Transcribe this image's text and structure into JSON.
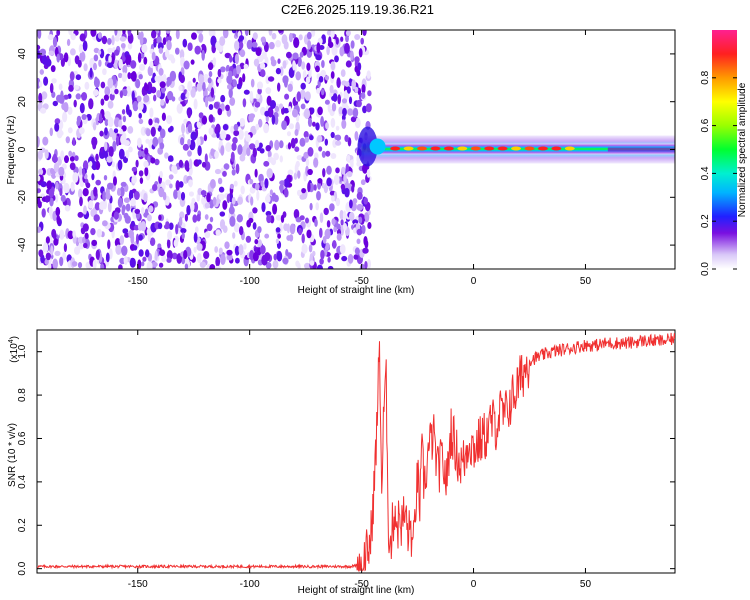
{
  "title": "C2E6.2025.119.19.36.R21",
  "colorbar": {
    "label": "Normalized spectral amplitude",
    "ticks": [
      "0.0",
      "0.2",
      "0.4",
      "0.6",
      "0.8"
    ]
  },
  "chart_data": [
    {
      "type": "heatmap",
      "title": "C2E6.2025.119.19.36.R21",
      "xlabel": "Height of straight line (km)",
      "ylabel": "Frequency (Hz)",
      "xlim": [
        -195,
        90
      ],
      "ylim": [
        -50,
        50
      ],
      "xticks": [
        -150,
        -100,
        -50,
        0,
        50
      ],
      "yticks": [
        -40,
        -20,
        0,
        20,
        40
      ],
      "colorbar_range": [
        0,
        1
      ],
      "description_values": {
        "noise_region_x": [
          -195,
          -50
        ],
        "signal_band_x": [
          -50,
          90
        ],
        "signal_band_frequency": 0
      }
    },
    {
      "type": "line",
      "xlabel": "Height of straight line (km)",
      "ylabel": "SNR (10 * v/v)",
      "yscale_label": "(x10",
      "yscale_exponent": "4",
      "yscale_close": ")",
      "xlim": [
        -195,
        90
      ],
      "ylim": [
        -0.02,
        1.1
      ],
      "xticks": [
        -150,
        -100,
        -50,
        0,
        50
      ],
      "yticks": [
        "0.0",
        "0.2",
        "0.4",
        "0.6",
        "0.8",
        "1.0"
      ],
      "ytick_values": [
        0.0,
        0.2,
        0.4,
        0.6,
        0.8,
        1.0
      ],
      "series": [
        {
          "color": "#f03030",
          "x": [
            -195,
            -170,
            -145,
            -120,
            -95,
            -70,
            -55,
            -50,
            -48,
            -46,
            -45,
            -44,
            -43,
            -42,
            -41,
            -40,
            -39,
            -38,
            -37,
            -36,
            -35,
            -34,
            -33,
            -32,
            -31,
            -30,
            -29,
            -28,
            -27,
            -26,
            -25,
            -24,
            -23,
            -22,
            -20,
            -18,
            -16,
            -14,
            -12,
            -10,
            -8,
            -6,
            -4,
            -2,
            0,
            2,
            4,
            6,
            8,
            10,
            12,
            14,
            16,
            18,
            20,
            22,
            25,
            30,
            35,
            40,
            45,
            50,
            55,
            60,
            65,
            70,
            75,
            80,
            85,
            90
          ],
          "y": [
            0.01,
            0.01,
            0.01,
            0.01,
            0.01,
            0.01,
            0.01,
            0.02,
            0.06,
            0.12,
            0.28,
            0.45,
            0.7,
            1.04,
            0.35,
            0.75,
            0.85,
            0.2,
            0.1,
            0.22,
            0.28,
            0.18,
            0.25,
            0.2,
            0.25,
            0.22,
            0.15,
            0.2,
            0.05,
            0.28,
            0.42,
            0.3,
            0.52,
            0.38,
            0.55,
            0.62,
            0.45,
            0.5,
            0.4,
            0.65,
            0.55,
            0.48,
            0.5,
            0.6,
            0.55,
            0.58,
            0.6,
            0.62,
            0.68,
            0.66,
            0.72,
            0.7,
            0.76,
            0.8,
            0.85,
            0.9,
            0.96,
            0.98,
            1.0,
            1.01,
            1.02,
            1.03,
            1.03,
            1.04,
            1.04,
            1.04,
            1.05,
            1.05,
            1.05,
            1.06
          ]
        }
      ]
    }
  ]
}
